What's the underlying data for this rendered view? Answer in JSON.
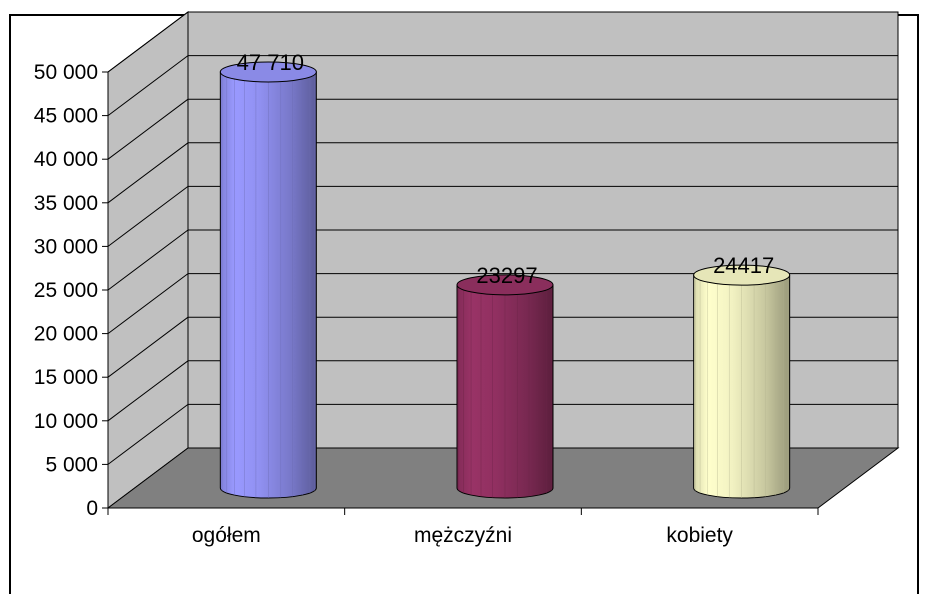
{
  "chart_data": {
    "type": "bar",
    "style": "3d-cylinder",
    "categories": [
      "ogółem",
      "mężczyźni",
      "kobiety"
    ],
    "values": [
      47710,
      23297,
      24417
    ],
    "data_labels": [
      "47 710",
      "23297",
      "24417"
    ],
    "y_ticks": [
      "0",
      "5 000",
      "10 000",
      "15 000",
      "20 000",
      "25 000",
      "30 000",
      "35 000",
      "40 000",
      "45 000",
      "50 000"
    ],
    "ylim": [
      0,
      50000
    ],
    "grid": true,
    "legend": "none",
    "colors": {
      "series": [
        "#9999FF",
        "#993366",
        "#FFFFCC"
      ],
      "wall": "#C0C0C0",
      "floor": "#808080",
      "gridline": "#000000"
    }
  }
}
